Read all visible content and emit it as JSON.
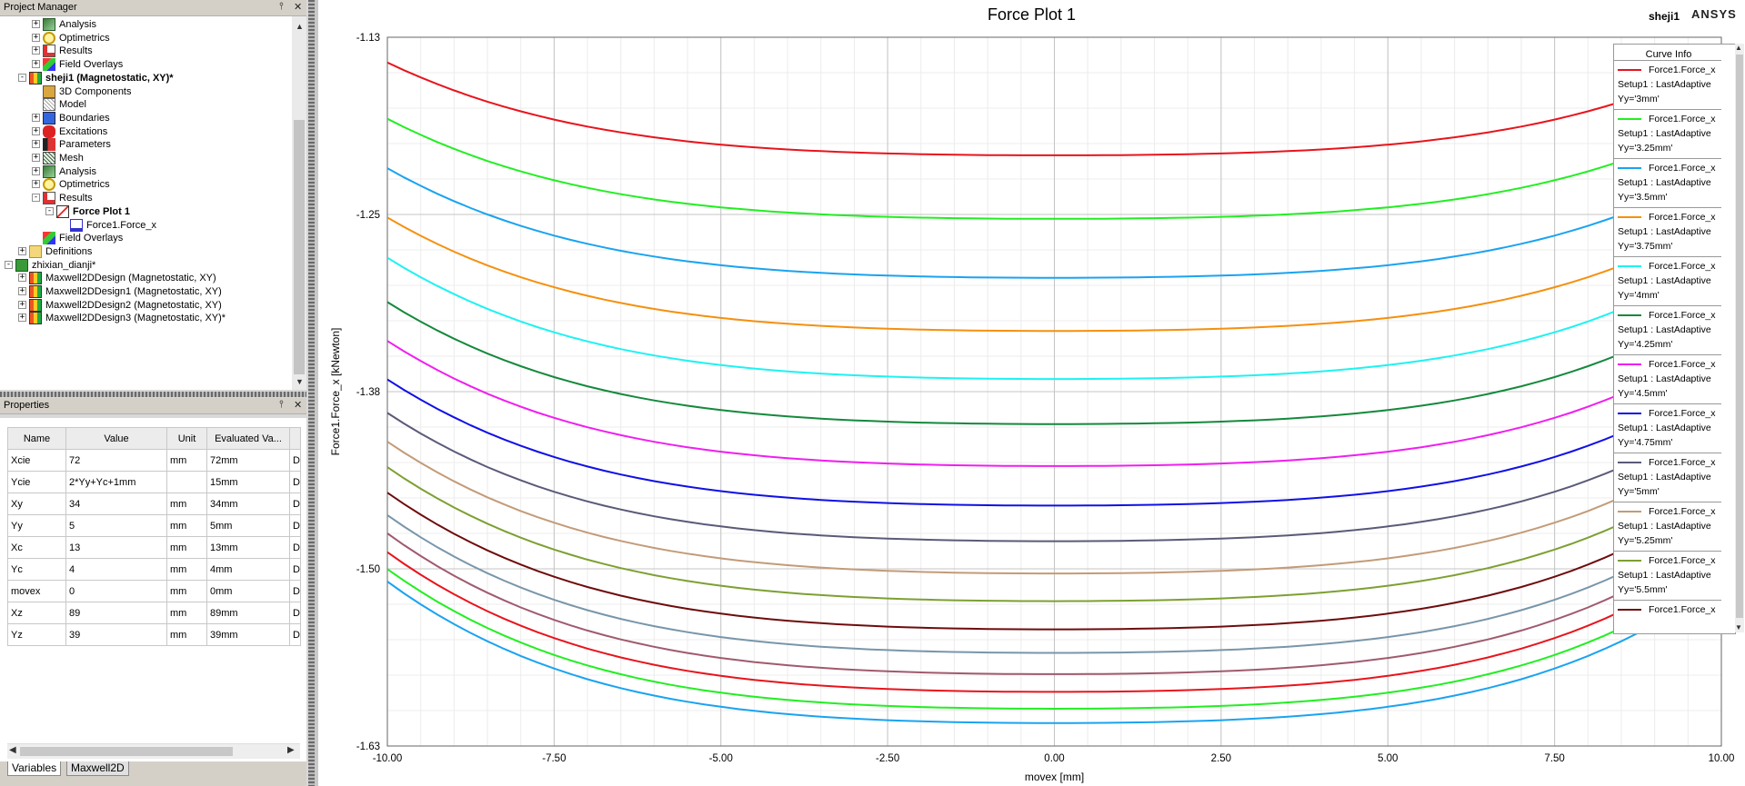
{
  "project_manager": {
    "title": "Project Manager",
    "pin_icon": "pin-icon",
    "close_icon": "close-icon",
    "tree": [
      {
        "label": "Analysis",
        "level": 2,
        "expander": "+",
        "icon": "analysis-icon",
        "bold": false
      },
      {
        "label": "Optimetrics",
        "level": 2,
        "expander": "+",
        "icon": "optimetrics-icon",
        "bold": false
      },
      {
        "label": "Results",
        "level": 2,
        "expander": "+",
        "icon": "results-icon",
        "bold": false
      },
      {
        "label": "Field Overlays",
        "level": 2,
        "expander": "+",
        "icon": "field-overlays-icon",
        "bold": false
      },
      {
        "label": "sheji1 (Magnetostatic, XY)*",
        "level": 1,
        "expander": "-",
        "icon": "design-icon",
        "bold": true
      },
      {
        "label": "3D Components",
        "level": 2,
        "expander": "",
        "icon": "components-icon",
        "bold": false
      },
      {
        "label": "Model",
        "level": 2,
        "expander": "",
        "icon": "model-icon",
        "bold": false
      },
      {
        "label": "Boundaries",
        "level": 2,
        "expander": "+",
        "icon": "boundaries-icon",
        "bold": false
      },
      {
        "label": "Excitations",
        "level": 2,
        "expander": "+",
        "icon": "excitations-icon",
        "bold": false
      },
      {
        "label": "Parameters",
        "level": 2,
        "expander": "+",
        "icon": "parameters-icon",
        "bold": false
      },
      {
        "label": "Mesh",
        "level": 2,
        "expander": "+",
        "icon": "mesh-icon",
        "bold": false
      },
      {
        "label": "Analysis",
        "level": 2,
        "expander": "+",
        "icon": "analysis-icon",
        "bold": false
      },
      {
        "label": "Optimetrics",
        "level": 2,
        "expander": "+",
        "icon": "optimetrics-icon",
        "bold": false
      },
      {
        "label": "Results",
        "level": 2,
        "expander": "-",
        "icon": "results-icon",
        "bold": false
      },
      {
        "label": "Force Plot 1",
        "level": 3,
        "expander": "-",
        "icon": "plot-icon",
        "bold": true
      },
      {
        "label": "Force1.Force_x",
        "level": 4,
        "expander": "",
        "icon": "trace-icon",
        "bold": false
      },
      {
        "label": "Field Overlays",
        "level": 2,
        "expander": "",
        "icon": "field-overlays-icon",
        "bold": false
      },
      {
        "label": "Definitions",
        "level": 1,
        "expander": "+",
        "icon": "folder-icon",
        "bold": false
      },
      {
        "label": "zhixian_dianji*",
        "level": 0,
        "expander": "-",
        "icon": "project-icon",
        "bold": false
      },
      {
        "label": "Maxwell2DDesign (Magnetostatic, XY)",
        "level": 1,
        "expander": "+",
        "icon": "design-icon",
        "bold": false
      },
      {
        "label": "Maxwell2DDesign1 (Magnetostatic, XY)",
        "level": 1,
        "expander": "+",
        "icon": "design-icon",
        "bold": false
      },
      {
        "label": "Maxwell2DDesign2 (Magnetostatic, XY)",
        "level": 1,
        "expander": "+",
        "icon": "design-icon",
        "bold": false
      },
      {
        "label": "Maxwell2DDesign3 (Magnetostatic, XY)*",
        "level": 1,
        "expander": "+",
        "icon": "design-icon",
        "bold": false
      }
    ]
  },
  "properties": {
    "title": "Properties",
    "columns": [
      "Name",
      "Value",
      "Unit",
      "Evaluated Va...",
      ""
    ],
    "rows": [
      [
        "Xcie",
        "72",
        "mm",
        "72mm",
        "D"
      ],
      [
        "Ycie",
        "2*Yy+Yc+1mm",
        "",
        "15mm",
        "D"
      ],
      [
        "Xy",
        "34",
        "mm",
        "34mm",
        "D"
      ],
      [
        "Yy",
        "5",
        "mm",
        "5mm",
        "D"
      ],
      [
        "Xc",
        "13",
        "mm",
        "13mm",
        "D"
      ],
      [
        "Yc",
        "4",
        "mm",
        "4mm",
        "D"
      ],
      [
        "movex",
        "0",
        "mm",
        "0mm",
        "D"
      ],
      [
        "Xz",
        "89",
        "mm",
        "89mm",
        "D"
      ],
      [
        "Yz",
        "39",
        "mm",
        "39mm",
        "D"
      ]
    ],
    "tabs": [
      "Variables",
      "Maxwell2D"
    ],
    "active_tab": "Variables"
  },
  "plot": {
    "title": "Force Plot 1",
    "design_name": "sheji1",
    "brand": "ANSYS",
    "legend_title": "Curve Info"
  },
  "chart_data": {
    "type": "line",
    "title": "Force Plot 1",
    "xlabel": "movex [mm]",
    "ylabel": "Force1.Force_x [kNewton]",
    "xlim": [
      -10,
      10
    ],
    "ylim": [
      -1.63,
      -1.13
    ],
    "xticks": [
      "-10.00",
      "-7.50",
      "-5.00",
      "-2.50",
      "0.00",
      "2.50",
      "5.00",
      "7.50",
      "10.00"
    ],
    "yticks": [
      "-1.13",
      "-1.25",
      "-1.38",
      "-1.50",
      "-1.63"
    ],
    "grid": true,
    "legend_position": "right",
    "x": [
      -10,
      -9,
      -8,
      -7,
      -6,
      -5,
      -4,
      -3,
      -2,
      -1,
      0,
      1,
      2,
      3,
      4,
      5,
      6,
      7,
      8,
      9,
      10
    ],
    "series": [
      {
        "name": "Force1.Force_x",
        "setup": "Setup1 : LastAdaptive",
        "variation": "Yy='3mm'",
        "color": "#e8141c",
        "min": -1.2133,
        "edge": -1.1478,
        "label_shown": true
      },
      {
        "name": "Force1.Force_x",
        "setup": "Setup1 : LastAdaptive",
        "variation": "Yy='3.25mm'",
        "color": "#22ee22",
        "min": -1.2581,
        "edge": -1.1875,
        "label_shown": true
      },
      {
        "name": "Force1.Force_x",
        "setup": "Setup1 : LastAdaptive",
        "variation": "Yy='3.5mm'",
        "color": "#1aa3f0",
        "min": -1.2997,
        "edge": -1.2224,
        "label_shown": true
      },
      {
        "name": "Force1.Force_x",
        "setup": "Setup1 : LastAdaptive",
        "variation": "Yy='3.75mm'",
        "color": "#f5900e",
        "min": -1.3372,
        "edge": -1.2572,
        "label_shown": true
      },
      {
        "name": "Force1.Force_x",
        "setup": "Setup1 : LastAdaptive",
        "variation": "Yy='4mm'",
        "color": "#1ef2f2",
        "min": -1.3711,
        "edge": -1.2855,
        "label_shown": true
      },
      {
        "name": "Force1.Force_x",
        "setup": "Setup1 : LastAdaptive",
        "variation": "Yy='4.25mm'",
        "color": "#15893c",
        "min": -1.4029,
        "edge": -1.3168,
        "label_shown": true
      },
      {
        "name": "Force1.Force_x",
        "setup": "Setup1 : LastAdaptive",
        "variation": "Yy='4.5mm'",
        "color": "#f01ef0",
        "min": -1.4325,
        "edge": -1.3442,
        "label_shown": true
      },
      {
        "name": "Force1.Force_x",
        "setup": "Setup1 : LastAdaptive",
        "variation": "Yy='4.75mm'",
        "color": "#1010e6",
        "min": -1.4604,
        "edge": -1.3714,
        "label_shown": true
      },
      {
        "name": "Force1.Force_x",
        "setup": "Setup1 : LastAdaptive",
        "variation": "Yy='5mm'",
        "color": "#5a5a78",
        "min": -1.4855,
        "edge": -1.395,
        "label_shown": true
      },
      {
        "name": "Force1.Force_x",
        "setup": "Setup1 : LastAdaptive",
        "variation": "Yy='5.25mm'",
        "color": "#c39b78",
        "min": -1.5083,
        "edge": -1.4153,
        "label_shown": true
      },
      {
        "name": "Force1.Force_x",
        "setup": "Setup1 : LastAdaptive",
        "variation": "Yy='5.5mm'",
        "color": "#7da032",
        "min": -1.5278,
        "edge": -1.4333,
        "label_shown": true
      },
      {
        "name": "Force1.Force_x",
        "setup": "",
        "variation": "",
        "color": "#6e0c0c",
        "min": -1.5477,
        "edge": -1.4513,
        "label_shown": true
      },
      {
        "name": "",
        "setup": "",
        "variation": "",
        "color": "#7896aa",
        "min": -1.5643,
        "edge": -1.4671,
        "label_shown": false
      },
      {
        "name": "",
        "setup": "",
        "variation": "",
        "color": "#a05a6e",
        "min": -1.5793,
        "edge": -1.48,
        "label_shown": false
      },
      {
        "name": "",
        "setup": "",
        "variation": "",
        "color": "#e8141c",
        "min": -1.5918,
        "edge": -1.4933,
        "label_shown": false
      },
      {
        "name": "",
        "setup": "",
        "variation": "",
        "color": "#22ee22",
        "min": -1.6037,
        "edge": -1.5052,
        "label_shown": false
      },
      {
        "name": "",
        "setup": "",
        "variation": "",
        "color": "#1aa3f0",
        "min": -1.6138,
        "edge": -1.514,
        "label_shown": false
      }
    ]
  }
}
